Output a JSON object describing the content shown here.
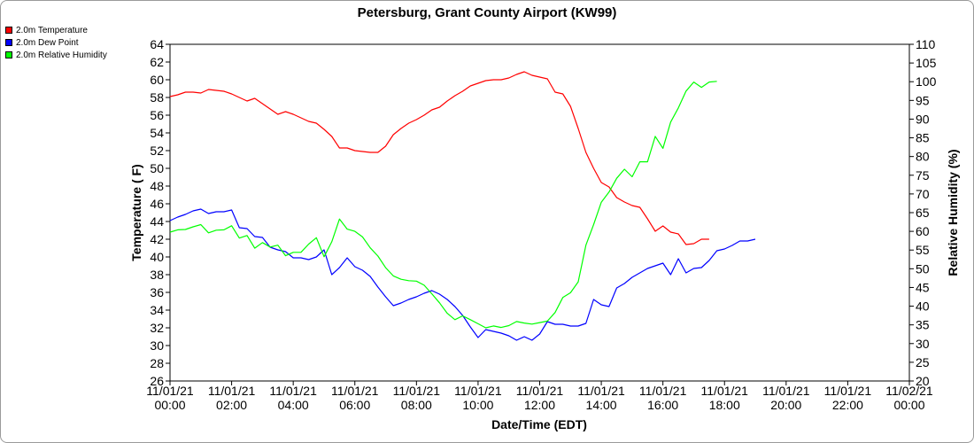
{
  "chart_data": {
    "type": "line",
    "title": "Petersburg, Grant County Airport (KW99)",
    "xlabel": "Date/Time (EDT)",
    "ylabel_left": "Temperature ( F)",
    "ylabel_right": "Relative Humidity (%)",
    "x_range_hours": [
      0,
      24
    ],
    "ylim_left": [
      26,
      64
    ],
    "ylim_right": [
      20,
      110
    ],
    "y_ticks_left": [
      26,
      28,
      30,
      32,
      34,
      36,
      38,
      40,
      42,
      44,
      46,
      48,
      50,
      52,
      54,
      56,
      58,
      60,
      62,
      64
    ],
    "y_ticks_right": [
      20,
      25,
      30,
      35,
      40,
      45,
      50,
      55,
      60,
      65,
      70,
      75,
      80,
      85,
      90,
      95,
      100,
      105,
      110
    ],
    "x_ticks": [
      {
        "hour": 0,
        "date": "11/01/21",
        "time": "00:00"
      },
      {
        "hour": 2,
        "date": "11/01/21",
        "time": "02:00"
      },
      {
        "hour": 4,
        "date": "11/01/21",
        "time": "04:00"
      },
      {
        "hour": 6,
        "date": "11/01/21",
        "time": "06:00"
      },
      {
        "hour": 8,
        "date": "11/01/21",
        "time": "08:00"
      },
      {
        "hour": 10,
        "date": "11/01/21",
        "time": "10:00"
      },
      {
        "hour": 12,
        "date": "11/01/21",
        "time": "12:00"
      },
      {
        "hour": 14,
        "date": "11/01/21",
        "time": "14:00"
      },
      {
        "hour": 16,
        "date": "11/01/21",
        "time": "16:00"
      },
      {
        "hour": 18,
        "date": "11/01/21",
        "time": "18:00"
      },
      {
        "hour": 20,
        "date": "11/01/21",
        "time": "20:00"
      },
      {
        "hour": 22,
        "date": "11/01/21",
        "time": "22:00"
      },
      {
        "hour": 24,
        "date": "11/02/21",
        "time": "00:00"
      }
    ],
    "grid": false,
    "legend_position": "top-left outside",
    "series": [
      {
        "name": "2.0m Temperature",
        "color": "#ff0000",
        "axis": "left",
        "points": [
          [
            0.0,
            58.1
          ],
          [
            0.25,
            58.3
          ],
          [
            0.5,
            58.6
          ],
          [
            0.75,
            58.6
          ],
          [
            1.0,
            58.5
          ],
          [
            1.25,
            58.9
          ],
          [
            1.5,
            58.8
          ],
          [
            1.75,
            58.7
          ],
          [
            2.0,
            58.4
          ],
          [
            2.25,
            58.0
          ],
          [
            2.5,
            57.6
          ],
          [
            2.75,
            57.9
          ],
          [
            3.0,
            57.3
          ],
          [
            3.25,
            56.7
          ],
          [
            3.5,
            56.1
          ],
          [
            3.75,
            56.4
          ],
          [
            4.0,
            56.1
          ],
          [
            4.25,
            55.7
          ],
          [
            4.5,
            55.3
          ],
          [
            4.75,
            55.1
          ],
          [
            5.0,
            54.4
          ],
          [
            5.25,
            53.6
          ],
          [
            5.5,
            52.3
          ],
          [
            5.75,
            52.3
          ],
          [
            6.0,
            52.0
          ],
          [
            6.25,
            51.9
          ],
          [
            6.5,
            51.8
          ],
          [
            6.75,
            51.8
          ],
          [
            7.0,
            52.5
          ],
          [
            7.25,
            53.8
          ],
          [
            7.5,
            54.5
          ],
          [
            7.75,
            55.1
          ],
          [
            8.0,
            55.5
          ],
          [
            8.25,
            56.0
          ],
          [
            8.5,
            56.6
          ],
          [
            8.75,
            56.9
          ],
          [
            9.0,
            57.6
          ],
          [
            9.25,
            58.2
          ],
          [
            9.5,
            58.7
          ],
          [
            9.75,
            59.3
          ],
          [
            10.0,
            59.6
          ],
          [
            10.25,
            59.9
          ],
          [
            10.5,
            60.0
          ],
          [
            10.75,
            60.0
          ],
          [
            11.0,
            60.2
          ],
          [
            11.25,
            60.6
          ],
          [
            11.5,
            60.9
          ],
          [
            11.75,
            60.5
          ],
          [
            12.0,
            60.3
          ],
          [
            12.25,
            60.1
          ],
          [
            12.5,
            58.6
          ],
          [
            12.75,
            58.4
          ],
          [
            13.0,
            57.0
          ],
          [
            13.25,
            54.5
          ],
          [
            13.5,
            51.8
          ],
          [
            13.75,
            50.0
          ],
          [
            14.0,
            48.4
          ],
          [
            14.25,
            47.9
          ],
          [
            14.5,
            46.7
          ],
          [
            14.75,
            46.2
          ],
          [
            15.0,
            45.8
          ],
          [
            15.25,
            45.6
          ],
          [
            15.5,
            44.3
          ],
          [
            15.75,
            42.9
          ],
          [
            16.0,
            43.5
          ],
          [
            16.25,
            42.8
          ],
          [
            16.5,
            42.6
          ],
          [
            16.75,
            41.4
          ],
          [
            17.0,
            41.5
          ],
          [
            17.25,
            42.0
          ],
          [
            17.5,
            42.0
          ]
        ]
      },
      {
        "name": "2.0m Dew Point",
        "color": "#0000ff",
        "axis": "left",
        "points": [
          [
            0.0,
            44.1
          ],
          [
            0.25,
            44.5
          ],
          [
            0.5,
            44.8
          ],
          [
            0.75,
            45.2
          ],
          [
            1.0,
            45.4
          ],
          [
            1.25,
            44.9
          ],
          [
            1.5,
            45.1
          ],
          [
            1.75,
            45.1
          ],
          [
            2.0,
            45.3
          ],
          [
            2.25,
            43.3
          ],
          [
            2.5,
            43.2
          ],
          [
            2.75,
            42.3
          ],
          [
            3.0,
            42.2
          ],
          [
            3.25,
            41.1
          ],
          [
            3.5,
            40.8
          ],
          [
            3.75,
            40.6
          ],
          [
            4.0,
            39.9
          ],
          [
            4.25,
            39.9
          ],
          [
            4.5,
            39.7
          ],
          [
            4.75,
            40.0
          ],
          [
            5.0,
            40.8
          ],
          [
            5.25,
            38.0
          ],
          [
            5.5,
            38.8
          ],
          [
            5.75,
            39.9
          ],
          [
            6.0,
            38.9
          ],
          [
            6.25,
            38.5
          ],
          [
            6.5,
            37.8
          ],
          [
            6.75,
            36.6
          ],
          [
            7.0,
            35.5
          ],
          [
            7.25,
            34.5
          ],
          [
            7.5,
            34.8
          ],
          [
            7.75,
            35.2
          ],
          [
            8.0,
            35.5
          ],
          [
            8.25,
            35.9
          ],
          [
            8.5,
            36.2
          ],
          [
            8.75,
            35.8
          ],
          [
            9.0,
            35.2
          ],
          [
            9.25,
            34.4
          ],
          [
            9.5,
            33.4
          ],
          [
            9.75,
            32.1
          ],
          [
            10.0,
            30.9
          ],
          [
            10.25,
            31.8
          ],
          [
            10.5,
            31.6
          ],
          [
            10.75,
            31.4
          ],
          [
            11.0,
            31.1
          ],
          [
            11.25,
            30.6
          ],
          [
            11.5,
            31.0
          ],
          [
            11.75,
            30.6
          ],
          [
            12.0,
            31.3
          ],
          [
            12.25,
            32.7
          ],
          [
            12.5,
            32.4
          ],
          [
            12.75,
            32.4
          ],
          [
            13.0,
            32.2
          ],
          [
            13.25,
            32.2
          ],
          [
            13.5,
            32.5
          ],
          [
            13.75,
            35.2
          ],
          [
            14.0,
            34.6
          ],
          [
            14.25,
            34.4
          ],
          [
            14.5,
            36.5
          ],
          [
            14.75,
            37.0
          ],
          [
            15.0,
            37.7
          ],
          [
            15.25,
            38.2
          ],
          [
            15.5,
            38.7
          ],
          [
            15.75,
            39.0
          ],
          [
            16.0,
            39.3
          ],
          [
            16.25,
            38.0
          ],
          [
            16.5,
            39.8
          ],
          [
            16.75,
            38.2
          ],
          [
            17.0,
            38.7
          ],
          [
            17.25,
            38.8
          ],
          [
            17.5,
            39.6
          ],
          [
            17.75,
            40.7
          ],
          [
            18.0,
            40.9
          ],
          [
            18.25,
            41.3
          ],
          [
            18.5,
            41.8
          ],
          [
            18.75,
            41.8
          ],
          [
            19.0,
            42.0
          ]
        ]
      },
      {
        "name": "2.0m Relative Humidity",
        "color": "#00ff00",
        "axis": "right",
        "points": [
          [
            0.0,
            59.8
          ],
          [
            0.25,
            60.4
          ],
          [
            0.5,
            60.5
          ],
          [
            0.75,
            61.2
          ],
          [
            1.0,
            61.8
          ],
          [
            1.25,
            59.6
          ],
          [
            1.5,
            60.3
          ],
          [
            1.75,
            60.4
          ],
          [
            2.0,
            61.5
          ],
          [
            2.25,
            58.2
          ],
          [
            2.5,
            58.9
          ],
          [
            2.75,
            55.5
          ],
          [
            3.0,
            57.0
          ],
          [
            3.25,
            55.8
          ],
          [
            3.5,
            56.3
          ],
          [
            3.75,
            53.5
          ],
          [
            4.0,
            54.4
          ],
          [
            4.25,
            54.4
          ],
          [
            4.5,
            56.6
          ],
          [
            4.75,
            58.3
          ],
          [
            5.0,
            53.2
          ],
          [
            5.25,
            57.2
          ],
          [
            5.5,
            63.3
          ],
          [
            5.75,
            60.6
          ],
          [
            6.0,
            60.0
          ],
          [
            6.25,
            58.5
          ],
          [
            6.5,
            55.6
          ],
          [
            6.75,
            53.4
          ],
          [
            7.0,
            50.3
          ],
          [
            7.25,
            48.1
          ],
          [
            7.5,
            47.2
          ],
          [
            7.75,
            46.8
          ],
          [
            8.0,
            46.7
          ],
          [
            8.25,
            45.6
          ],
          [
            8.5,
            43.3
          ],
          [
            8.75,
            40.9
          ],
          [
            9.0,
            38.1
          ],
          [
            9.25,
            36.4
          ],
          [
            9.5,
            37.4
          ],
          [
            9.75,
            36.4
          ],
          [
            10.0,
            35.3
          ],
          [
            10.25,
            34.2
          ],
          [
            10.5,
            34.7
          ],
          [
            10.75,
            34.3
          ],
          [
            11.0,
            34.8
          ],
          [
            11.25,
            35.9
          ],
          [
            11.5,
            35.5
          ],
          [
            11.75,
            35.2
          ],
          [
            12.0,
            35.6
          ],
          [
            12.25,
            36.0
          ],
          [
            12.5,
            38.3
          ],
          [
            12.75,
            42.3
          ],
          [
            13.0,
            43.6
          ],
          [
            13.25,
            46.5
          ],
          [
            13.5,
            56.3
          ],
          [
            13.75,
            61.8
          ],
          [
            14.0,
            67.8
          ],
          [
            14.25,
            70.5
          ],
          [
            14.5,
            74.2
          ],
          [
            14.75,
            76.6
          ],
          [
            15.0,
            74.6
          ],
          [
            15.25,
            78.6
          ],
          [
            15.5,
            78.6
          ],
          [
            15.75,
            85.4
          ],
          [
            16.0,
            82.2
          ],
          [
            16.25,
            89.2
          ],
          [
            16.5,
            93.0
          ],
          [
            16.75,
            97.5
          ],
          [
            17.0,
            99.9
          ],
          [
            17.25,
            98.5
          ],
          [
            17.5,
            99.9
          ],
          [
            17.75,
            100.1
          ]
        ]
      }
    ]
  }
}
